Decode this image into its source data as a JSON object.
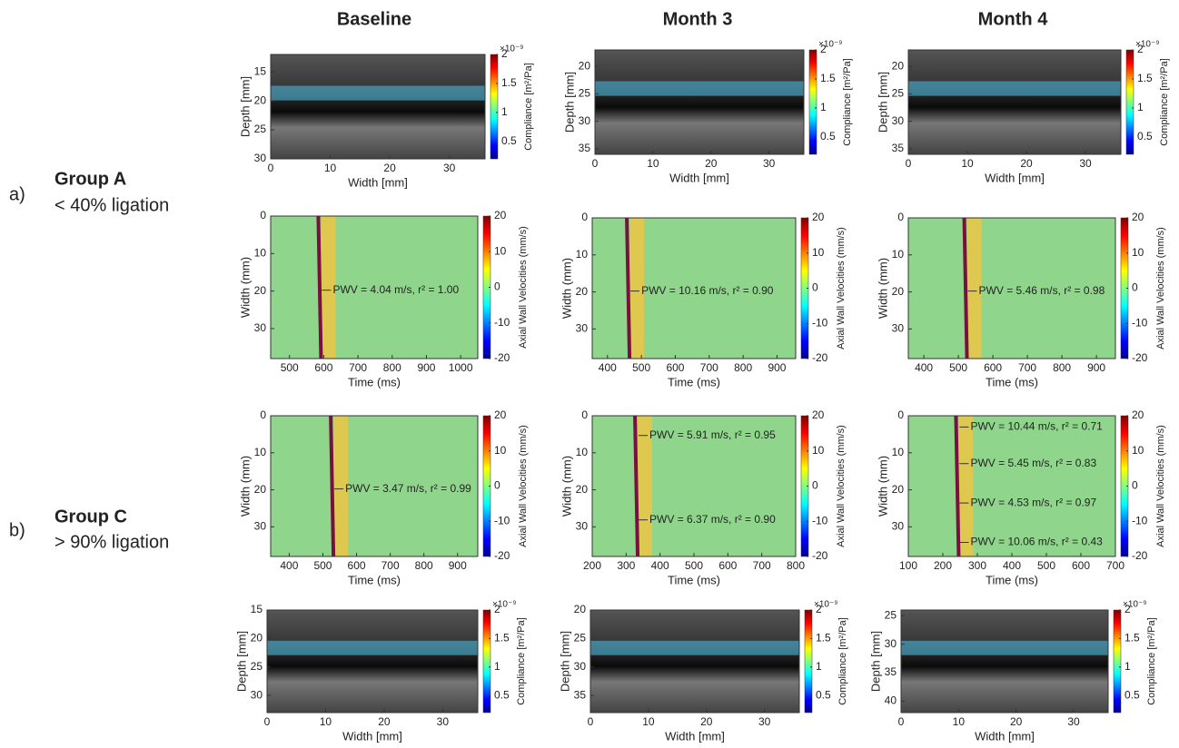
{
  "columns": [
    "Baseline",
    "Month 3",
    "Month 4"
  ],
  "rows": [
    {
      "letter": "a)",
      "group": "Group A",
      "condition": "< 40% ligation"
    },
    {
      "letter": "b)",
      "group": "Group C",
      "condition": "> 90% ligation"
    }
  ],
  "panels": [
    {
      "xlabel": "Width [mm]",
      "ylabel": "Depth [mm]",
      "xlim": [
        0,
        36
      ],
      "xticks": [
        0,
        10,
        20,
        30
      ],
      "ylim": [
        12,
        30
      ],
      "yticks": [
        15,
        20,
        25,
        30
      ],
      "colorbar": {
        "label": "Compliance [m²/Pa]",
        "exponent": "×10⁻⁹",
        "lim": [
          0.2,
          2
        ],
        "ticks": [
          0.5,
          1,
          1.5,
          2
        ]
      }
    },
    {
      "xlabel": "Width [mm]",
      "ylabel": "Depth [mm]",
      "xlim": [
        0,
        36
      ],
      "xticks": [
        0,
        10,
        20,
        30
      ],
      "ylim": [
        17,
        36
      ],
      "yticks": [
        20,
        25,
        30,
        35
      ],
      "colorbar": {
        "label": "Compliance [m²/Pa]",
        "exponent": "×10⁻⁹",
        "lim": [
          0.2,
          2
        ],
        "ticks": [
          0.5,
          1,
          1.5,
          2
        ]
      }
    },
    {
      "xlabel": "Width [mm]",
      "ylabel": "Depth [mm]",
      "xlim": [
        0,
        36
      ],
      "xticks": [
        0,
        10,
        20,
        30
      ],
      "ylim": [
        17,
        36
      ],
      "yticks": [
        20,
        25,
        30,
        35
      ],
      "colorbar": {
        "label": "Compliance [m²/Pa]",
        "exponent": "×10⁻⁹",
        "lim": [
          0.2,
          2
        ],
        "ticks": [
          0.5,
          1,
          1.5,
          2
        ]
      }
    },
    {
      "xlabel": "Time (ms)",
      "ylabel": "Width (mm)",
      "xlim": [
        445,
        1050
      ],
      "xticks": [
        500,
        600,
        700,
        800,
        900,
        1000
      ],
      "ylim": [
        0,
        38
      ],
      "yticks": [
        0,
        10,
        20,
        30
      ],
      "colorbar": {
        "label": "Axial Wall Velocities (mm/s)",
        "lim": [
          -20,
          20
        ],
        "ticks": [
          -20,
          -10,
          0,
          10,
          20
        ]
      },
      "annotations": [
        "PWV = 4.04 m/s, r² = 1.00"
      ]
    },
    {
      "xlabel": "Time (ms)",
      "ylabel": "Width (mm)",
      "xlim": [
        355,
        955
      ],
      "xticks": [
        400,
        500,
        600,
        700,
        800,
        900
      ],
      "ylim": [
        0,
        38
      ],
      "yticks": [
        0,
        10,
        20,
        30
      ],
      "colorbar": {
        "label": "Axial Wall Velocities (mm/s)",
        "lim": [
          -20,
          20
        ],
        "ticks": [
          -20,
          -10,
          0,
          10,
          20
        ]
      },
      "annotations": [
        "PWV = 10.16 m/s, r² = 0.90"
      ]
    },
    {
      "xlabel": "Time (ms)",
      "ylabel": "Width (mm)",
      "xlim": [
        355,
        955
      ],
      "xticks": [
        400,
        500,
        600,
        700,
        800,
        900
      ],
      "ylim": [
        0,
        38
      ],
      "yticks": [
        0,
        10,
        20,
        30
      ],
      "colorbar": {
        "label": "Axial Wall Velocities (mm/s)",
        "lim": [
          -20,
          20
        ],
        "ticks": [
          -20,
          -10,
          0,
          10,
          20
        ]
      },
      "annotations": [
        "PWV = 5.46 m/s, r² = 0.98"
      ]
    },
    {
      "xlabel": "Time (ms)",
      "ylabel": "Width (mm)",
      "xlim": [
        345,
        960
      ],
      "xticks": [
        400,
        500,
        600,
        700,
        800,
        900
      ],
      "ylim": [
        0,
        38
      ],
      "yticks": [
        0,
        10,
        20,
        30
      ],
      "colorbar": {
        "label": "Axial Wall Velocities (mm/s)",
        "lim": [
          -20,
          20
        ],
        "ticks": [
          -20,
          -10,
          0,
          10,
          20
        ]
      },
      "annotations": [
        "PWV = 3.47 m/s, r² = 0.99"
      ]
    },
    {
      "xlabel": "Time (ms)",
      "ylabel": "Width (mm)",
      "xlim": [
        200,
        800
      ],
      "xticks": [
        200,
        300,
        400,
        500,
        600,
        700,
        800
      ],
      "ylim": [
        0,
        38
      ],
      "yticks": [
        0,
        10,
        20,
        30
      ],
      "colorbar": {
        "label": "Axial Wall Velocities (mm/s)",
        "lim": [
          -20,
          20
        ],
        "ticks": [
          -20,
          -10,
          0,
          10,
          20
        ]
      },
      "annotations": [
        "PWV = 5.91 m/s, r² = 0.95",
        "PWV = 6.37 m/s, r² = 0.90"
      ]
    },
    {
      "xlabel": "Time (ms)",
      "ylabel": "Width (mm)",
      "xlim": [
        100,
        700
      ],
      "xticks": [
        100,
        200,
        300,
        400,
        500,
        600,
        700
      ],
      "ylim": [
        0,
        38
      ],
      "yticks": [
        0,
        10,
        20,
        30
      ],
      "colorbar": {
        "label": "Axial Wall Velocities (mm/s)",
        "lim": [
          -20,
          20
        ],
        "ticks": [
          -20,
          -10,
          0,
          10,
          20
        ]
      },
      "annotations": [
        "PWV = 10.44 m/s, r² = 0.71",
        "PWV = 5.45 m/s, r² = 0.83",
        "PWV = 4.53 m/s, r² = 0.97",
        "PWV = 10.06 m/s, r² = 0.43"
      ]
    },
    {
      "xlabel": "Width [mm]",
      "ylabel": "Depth [mm]",
      "xlim": [
        0,
        36
      ],
      "xticks": [
        0,
        10,
        20,
        30
      ],
      "ylim": [
        15,
        33
      ],
      "yticks": [
        15,
        20,
        25,
        30
      ],
      "colorbar": {
        "label": "Compliance [m²/Pa]",
        "exponent": "×10⁻⁹",
        "lim": [
          0.2,
          2
        ],
        "ticks": [
          0.5,
          1,
          1.5,
          2
        ]
      }
    },
    {
      "xlabel": "Width [mm]",
      "ylabel": "Depth [mm]",
      "xlim": [
        0,
        36
      ],
      "xticks": [
        0,
        10,
        20,
        30
      ],
      "ylim": [
        20,
        38
      ],
      "yticks": [
        20,
        25,
        30,
        35
      ],
      "colorbar": {
        "label": "Compliance [m²/Pa]",
        "exponent": "×10⁻⁹",
        "lim": [
          0.2,
          2
        ],
        "ticks": [
          0.5,
          1,
          1.5,
          2
        ]
      }
    },
    {
      "xlabel": "Width [mm]",
      "ylabel": "Depth [mm]",
      "xlim": [
        0,
        36
      ],
      "xticks": [
        0,
        10,
        20,
        30
      ],
      "ylim": [
        24,
        42
      ],
      "yticks": [
        25,
        30,
        35,
        40
      ],
      "colorbar": {
        "label": "Compliance [m²/Pa]",
        "exponent": "×10⁻⁹",
        "lim": [
          0.2,
          2
        ],
        "ticks": [
          0.5,
          1,
          1.5,
          2
        ]
      }
    }
  ]
}
